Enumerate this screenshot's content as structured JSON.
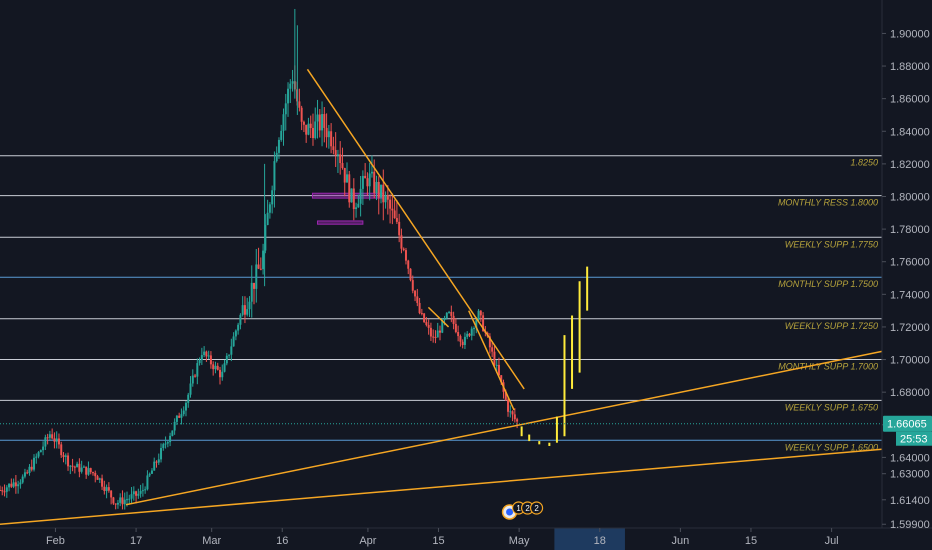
{
  "chart_data": {
    "type": "candlestick",
    "title": "",
    "xlabel": "",
    "ylabel": "",
    "ylim": [
      1.5967,
      1.9205
    ],
    "x_range_days": [
      0,
      175
    ],
    "grid": false,
    "y_ticks": [
      "1.90000",
      "1.88000",
      "1.86000",
      "1.84000",
      "1.82000",
      "1.80000",
      "1.78000",
      "1.76000",
      "1.74000",
      "1.72000",
      "1.70000",
      "1.68000",
      "1.66000",
      "1.64000",
      "1.63000",
      "1.61400",
      "1.59900"
    ],
    "y_tick_values": [
      1.9,
      1.88,
      1.86,
      1.84,
      1.82,
      1.8,
      1.78,
      1.76,
      1.74,
      1.72,
      1.7,
      1.68,
      1.66,
      1.64,
      1.63,
      1.614,
      1.599
    ],
    "x_ticks": [
      {
        "label": "Feb",
        "day": 11
      },
      {
        "label": "17",
        "day": 27
      },
      {
        "label": "Mar",
        "day": 42
      },
      {
        "label": "16",
        "day": 56
      },
      {
        "label": "Apr",
        "day": 73
      },
      {
        "label": "15",
        "day": 87
      },
      {
        "label": "May",
        "day": 103
      },
      {
        "label": "18",
        "day": 119
      },
      {
        "label": "Jun",
        "day": 135
      },
      {
        "label": "15",
        "day": 149
      },
      {
        "label": "Jul",
        "day": 165
      }
    ],
    "levels": [
      {
        "label": "1.8250",
        "value": 1.825,
        "color": "#c9cdd6"
      },
      {
        "label": "MONTHLY RESS 1.8000",
        "value": 1.8005,
        "color": "#c9cdd6"
      },
      {
        "label": "WEEKLY SUPP 1.7750",
        "value": 1.775,
        "color": "#c9cdd6"
      },
      {
        "label": "MONTHLY SUPP 1.7500",
        "value": 1.7505,
        "color": "#5b9bd5"
      },
      {
        "label": "WEEKLY SUPP 1.7250",
        "value": 1.725,
        "color": "#c9cdd6"
      },
      {
        "label": "MONTHLY SUPP 1.7000",
        "value": 1.7,
        "color": "#c9cdd6"
      },
      {
        "label": "WEEKLY SUPP 1.6750",
        "value": 1.675,
        "color": "#c9cdd6"
      },
      {
        "label": "WEEKLY SUPP 1.6500",
        "value": 1.6505,
        "color": "#5b9bd5"
      }
    ],
    "current_price": {
      "label": "1.66065",
      "value": 1.66065,
      "countdown": "25:53"
    },
    "ohlc_anchors": [
      {
        "day": 0,
        "close": 1.62
      },
      {
        "day": 5,
        "close": 1.628
      },
      {
        "day": 10,
        "close": 1.655
      },
      {
        "day": 14,
        "close": 1.635
      },
      {
        "day": 19,
        "close": 1.63
      },
      {
        "day": 23,
        "close": 1.612
      },
      {
        "day": 28,
        "close": 1.618
      },
      {
        "day": 33,
        "close": 1.65
      },
      {
        "day": 37,
        "close": 1.675
      },
      {
        "day": 40,
        "close": 1.705
      },
      {
        "day": 44,
        "close": 1.69
      },
      {
        "day": 48,
        "close": 1.73
      },
      {
        "day": 52,
        "close": 1.76
      },
      {
        "day": 55,
        "close": 1.835
      },
      {
        "day": 58,
        "close": 1.875
      },
      {
        "day": 60,
        "close": 1.84
      },
      {
        "day": 64,
        "close": 1.845
      },
      {
        "day": 67,
        "close": 1.83
      },
      {
        "day": 70,
        "close": 1.795
      },
      {
        "day": 73,
        "close": 1.812
      },
      {
        "day": 77,
        "close": 1.795
      },
      {
        "day": 80,
        "close": 1.77
      },
      {
        "day": 83,
        "close": 1.73
      },
      {
        "day": 86,
        "close": 1.712
      },
      {
        "day": 89,
        "close": 1.728
      },
      {
        "day": 92,
        "close": 1.71
      },
      {
        "day": 95,
        "close": 1.728
      },
      {
        "day": 98,
        "close": 1.7
      },
      {
        "day": 101,
        "close": 1.668
      },
      {
        "day": 103,
        "close": 1.66
      }
    ],
    "trendlines": [
      {
        "name": "upper-trendline",
        "from": {
          "day": 61,
          "value": 1.878
        },
        "to": {
          "day": 104,
          "value": 1.682
        }
      },
      {
        "name": "rising-trendline-upper",
        "from": {
          "day": 25,
          "value": 1.611
        },
        "to": {
          "day": 175,
          "value": 1.705
        }
      },
      {
        "name": "rising-trendline-lower",
        "from": {
          "day": 0,
          "value": 1.599
        },
        "to": {
          "day": 175,
          "value": 1.645
        }
      },
      {
        "name": "short-trendline",
        "from": {
          "day": 93,
          "value": 1.73
        },
        "to": {
          "day": 102,
          "value": 1.669
        }
      },
      {
        "name": "mini-trendline",
        "from": {
          "day": 85,
          "value": 1.732
        },
        "to": {
          "day": 89,
          "value": 1.72
        }
      }
    ],
    "projection_bars": [
      {
        "day": 103.5,
        "low": 1.653,
        "high": 1.659
      },
      {
        "day": 105,
        "low": 1.65,
        "high": 1.654
      },
      {
        "day": 107,
        "low": 1.648,
        "high": 1.65
      },
      {
        "day": 109,
        "low": 1.647,
        "high": 1.649
      },
      {
        "day": 110.5,
        "low": 1.649,
        "high": 1.665
      },
      {
        "day": 112,
        "low": 1.653,
        "high": 1.715
      },
      {
        "day": 113.5,
        "low": 1.682,
        "high": 1.727
      },
      {
        "day": 115,
        "low": 1.692,
        "high": 1.748
      },
      {
        "day": 116.5,
        "low": 1.73,
        "high": 1.757
      }
    ],
    "rectangles": [
      {
        "from_day": 62,
        "to_day": 76,
        "low": 1.799,
        "high": 1.802,
        "color": "#9c27b0"
      },
      {
        "from_day": 63,
        "to_day": 72,
        "low": 1.783,
        "high": 1.785,
        "color": "#9c27b0"
      }
    ],
    "event_badges": [
      "1",
      "2",
      "2"
    ]
  },
  "colors": {
    "background": "#131722",
    "axis_text": "#b2b5be",
    "level_label": "#b5a23c",
    "trendline": "#f5a623",
    "projection": "#ffeb3b",
    "bull": "#26a69a",
    "bear": "#ef5350",
    "price_tag": "#26a69a",
    "highlight_band": "#1e3a5f"
  }
}
